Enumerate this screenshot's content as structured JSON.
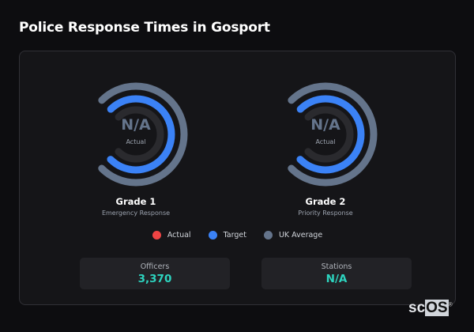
{
  "title": "Police Response Times in Gosport",
  "gauges": [
    {
      "value": "N/A",
      "value_label": "Actual",
      "name": "Grade 1",
      "description": "Emergency Response"
    },
    {
      "value": "N/A",
      "value_label": "Actual",
      "name": "Grade 2",
      "description": "Priority Response"
    }
  ],
  "legend": [
    {
      "label": "Actual",
      "color": "#ef4444"
    },
    {
      "label": "Target",
      "color": "#3b82f6"
    },
    {
      "label": "UK Average",
      "color": "#64748b"
    }
  ],
  "stats": [
    {
      "label": "Officers",
      "value": "3,370"
    },
    {
      "label": "Stations",
      "value": "N/A"
    }
  ],
  "logo": {
    "text_a": "sc",
    "text_b": "OS",
    "mark": "®"
  }
}
